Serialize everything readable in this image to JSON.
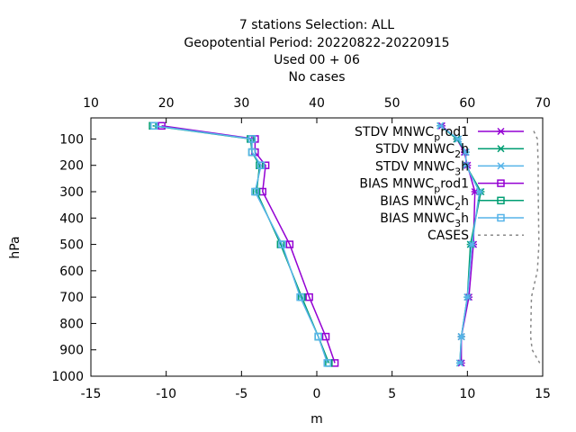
{
  "chart_data": {
    "type": "line",
    "title_lines": [
      "7 stations Selection: ALL",
      "Geopotential  Period: 20220822-20220915",
      "Used  00 + 06",
      "No cases"
    ],
    "xlabel": "m",
    "ylabel": "hPa",
    "xlim": [
      -15,
      15
    ],
    "x_ticks": [
      -15,
      -10,
      -5,
      0,
      5,
      10,
      15
    ],
    "x2lim": [
      10,
      70
    ],
    "x2_ticks": [
      10,
      20,
      30,
      40,
      50,
      60,
      70
    ],
    "ylim": [
      1000,
      20
    ],
    "y_ticks": [
      100,
      200,
      300,
      400,
      500,
      600,
      700,
      800,
      900,
      1000
    ],
    "grid": false,
    "legend_position": "top-right",
    "series": [
      {
        "name": "STDV MNWC_prod1",
        "base": "STDV MNWC",
        "sub": "p",
        "tail": "rod1",
        "color": "#9400d3",
        "marker": "x",
        "axis": "x1",
        "points": [
          [
            8.3,
            50
          ],
          [
            9.3,
            100
          ],
          [
            9.8,
            150
          ],
          [
            10.0,
            200
          ],
          [
            10.5,
            300
          ],
          [
            10.4,
            500
          ],
          [
            10.1,
            700
          ],
          [
            9.6,
            850
          ],
          [
            9.6,
            950
          ]
        ]
      },
      {
        "name": "STDV MNWC_2h",
        "base": "STDV MNWC",
        "sub": "2",
        "tail": "h",
        "color": "#009e73",
        "marker": "x",
        "axis": "x1",
        "points": [
          [
            8.2,
            50
          ],
          [
            9.3,
            100
          ],
          [
            9.9,
            150
          ],
          [
            9.9,
            200
          ],
          [
            10.9,
            300
          ],
          [
            10.2,
            500
          ],
          [
            10.0,
            700
          ],
          [
            9.6,
            850
          ],
          [
            9.5,
            950
          ]
        ]
      },
      {
        "name": "STDV MNWC_3h",
        "base": "STDV MNWC",
        "sub": "3",
        "tail": "h",
        "color": "#56b4e9",
        "marker": "x",
        "axis": "x1",
        "points": [
          [
            8.2,
            50
          ],
          [
            9.4,
            100
          ],
          [
            9.9,
            150
          ],
          [
            9.9,
            200
          ],
          [
            10.8,
            300
          ],
          [
            10.3,
            500
          ],
          [
            10.0,
            700
          ],
          [
            9.6,
            850
          ],
          [
            9.5,
            950
          ]
        ]
      },
      {
        "name": "BIAS MNWC_prod1",
        "base": "BIAS MNWC",
        "sub": "p",
        "tail": "rod1",
        "color": "#9400d3",
        "marker": "square",
        "axis": "x1",
        "points": [
          [
            -10.3,
            50
          ],
          [
            -4.1,
            100
          ],
          [
            -4.1,
            150
          ],
          [
            -3.4,
            200
          ],
          [
            -3.6,
            300
          ],
          [
            -1.8,
            500
          ],
          [
            -0.5,
            700
          ],
          [
            0.6,
            850
          ],
          [
            1.2,
            950
          ]
        ]
      },
      {
        "name": "BIAS MNWC_2h",
        "base": "BIAS MNWC",
        "sub": "2",
        "tail": "h",
        "color": "#009e73",
        "marker": "square",
        "axis": "x1",
        "points": [
          [
            -10.9,
            50
          ],
          [
            -4.4,
            100
          ],
          [
            -4.3,
            150
          ],
          [
            -3.8,
            200
          ],
          [
            -4.0,
            300
          ],
          [
            -2.4,
            500
          ],
          [
            -1.0,
            700
          ],
          [
            0.1,
            850
          ],
          [
            0.8,
            950
          ]
        ]
      },
      {
        "name": "BIAS MNWC_3h",
        "base": "BIAS MNWC",
        "sub": "3",
        "tail": "h",
        "color": "#56b4e9",
        "marker": "square",
        "axis": "x1",
        "points": [
          [
            -10.8,
            50
          ],
          [
            -4.3,
            100
          ],
          [
            -4.3,
            150
          ],
          [
            -3.7,
            200
          ],
          [
            -4.1,
            300
          ],
          [
            -2.3,
            500
          ],
          [
            -1.1,
            700
          ],
          [
            0.1,
            850
          ],
          [
            0.7,
            950
          ]
        ]
      },
      {
        "name": "CASES",
        "base": "CASES",
        "sub": "",
        "tail": "",
        "color": "#888888",
        "marker": "none",
        "dashed": true,
        "axis": "x2",
        "points": [
          [
            68.8,
            70
          ],
          [
            69.3,
            100
          ],
          [
            69.4,
            200
          ],
          [
            69.4,
            300
          ],
          [
            69.5,
            500
          ],
          [
            69.3,
            600
          ],
          [
            68.5,
            700
          ],
          [
            68.4,
            850
          ],
          [
            68.6,
            900
          ],
          [
            69.6,
            950
          ]
        ]
      }
    ]
  }
}
